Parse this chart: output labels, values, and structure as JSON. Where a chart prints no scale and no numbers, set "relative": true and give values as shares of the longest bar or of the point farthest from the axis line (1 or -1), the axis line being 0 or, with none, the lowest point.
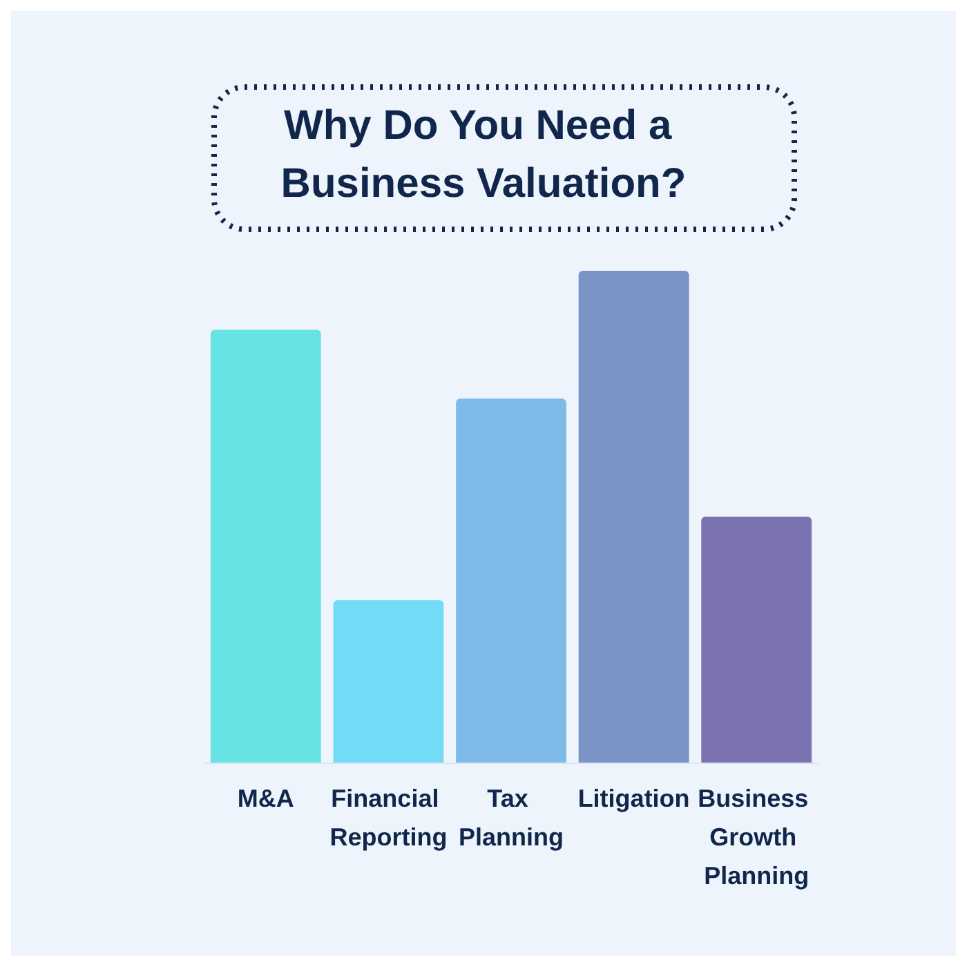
{
  "chart_data": {
    "type": "bar",
    "title": "Why Do You Need a Business Valuation?",
    "categories": [
      "M&A",
      "Financial Reporting",
      "Tax Planning",
      "Litigation",
      "Business Growth Planning"
    ],
    "values": [
      0.88,
      0.33,
      0.74,
      1,
      0.5
    ],
    "colors": [
      "#67e3e3",
      "#72dcf7",
      "#7fbbe8",
      "#7b93c4",
      "#7b72b0"
    ],
    "relative": true
  }
}
